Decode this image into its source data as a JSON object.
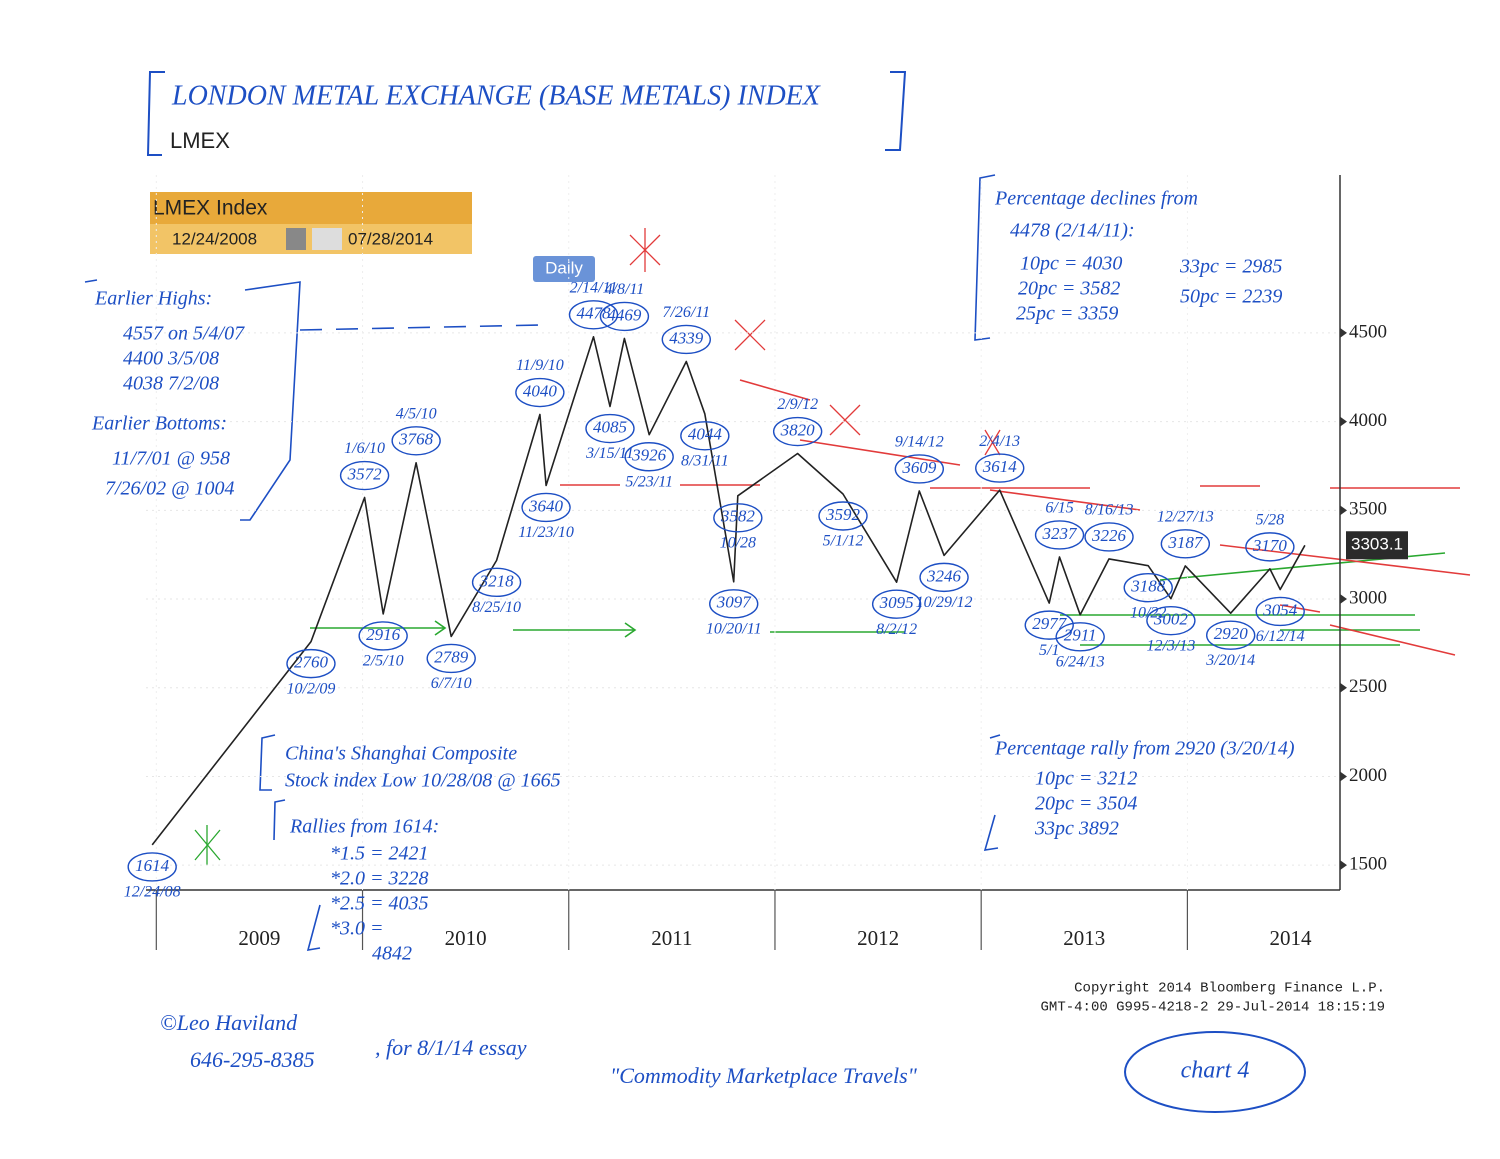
{
  "chart_data": {
    "type": "line",
    "title": "LONDON METAL EXCHANGE (BASE METALS) INDEX",
    "subtitle": "LMEX",
    "widget": {
      "start": "12/24/2008",
      "end": "07/28/2014",
      "period": "Daily"
    },
    "series": [
      {
        "name": "LMEX Index",
        "color": "#222222",
        "x": [
          2008.98,
          2009.75,
          2010.01,
          2010.1,
          2010.26,
          2010.43,
          2010.65,
          2010.86,
          2010.89,
          2011.12,
          2011.2,
          2011.27,
          2011.39,
          2011.57,
          2011.66,
          2011.8,
          2011.82,
          2012.11,
          2012.33,
          2012.59,
          2012.7,
          2012.82,
          2013.09,
          2013.33,
          2013.38,
          2013.48,
          2013.62,
          2013.81,
          2013.92,
          2013.99,
          2014.21,
          2014.4,
          2014.45,
          2014.57
        ],
        "values": [
          1614,
          2760,
          3572,
          2916,
          3768,
          2789,
          3218,
          4040,
          3640,
          4478,
          4085,
          4469,
          3926,
          4339,
          4044,
          3097,
          3582,
          3820,
          3592,
          3095,
          3609,
          3246,
          3614,
          2977,
          3237,
          2911,
          3226,
          3188,
          3002,
          3187,
          2920,
          3170,
          3054,
          3303.1
        ],
        "date_labels": [
          "12/24/08",
          "10/2/09",
          "1/6/10",
          "2/5/10",
          "4/5/10",
          "6/7/10",
          "8/25/10",
          "11/9/10",
          "11/23/10",
          "2/14/11",
          "3/15/11",
          "4/8/11",
          "5/23/11",
          "7/26/11",
          "8/31/11",
          "10/20/11",
          "10/28",
          "2/9/12",
          "5/1/12",
          "8/2/12",
          "9/14/12",
          "10/29/12",
          "2/4/13",
          "5/1",
          "6/15",
          "6/24/13",
          "8/16/13",
          "10/22",
          "12/3/13",
          "12/27/13",
          "3/20/14",
          "5/28",
          "6/12/14",
          null
        ]
      }
    ],
    "xlim": [
      2008.95,
      2014.74
    ],
    "xticks": [
      {
        "value": 2009,
        "label": "2009"
      },
      {
        "value": 2010,
        "label": "2010"
      },
      {
        "value": 2011,
        "label": "2011"
      },
      {
        "value": 2012,
        "label": "2012"
      },
      {
        "value": 2013,
        "label": "2013"
      },
      {
        "value": 2014,
        "label": "2014"
      }
    ],
    "ylim": [
      1360,
      5390
    ],
    "yticks": [
      1500,
      2000,
      2500,
      3000,
      3500,
      4000,
      4500
    ],
    "grid": true,
    "notes": [
      {
        "lines": [
          "Earlier Highs:",
          "4557 on 5/4/07",
          "4400   3/5/08",
          "4038   7/2/08",
          "Earlier Bottoms:",
          "11/7/01 @ 958",
          "7/26/02 @ 1004"
        ]
      },
      {
        "lines": [
          "Percentage declines from",
          "4478 (2/14/11):",
          "10pc = 4030",
          "20pc = 3582",
          "25pc = 3359",
          "33pc = 2985",
          "50pc = 2239"
        ]
      },
      {
        "lines": [
          "China's Shanghai Composite",
          "Stock index Low 10/28/08 @ 1665"
        ]
      },
      {
        "lines": [
          "Rallies from 1614:",
          "*1.5 = 2421",
          "*2.0 = 3228",
          "*2.5 = 4035",
          "*3.0 =",
          "4842"
        ]
      },
      {
        "lines": [
          "Percentage rally from 2920 (3/20/14)",
          "10pc = 3212",
          "20pc = 3504",
          "33pc  3892"
        ]
      },
      {
        "lines": [
          "Copyright 2014 Bloomberg Finance L.P.",
          "GMT-4:00 G995-4218-2 29-Jul-2014 18:15:19"
        ]
      },
      {
        "lines": [
          "©Leo Haviland",
          "646-295-8385",
          ", for 8/1/14 essay",
          "\"Commodity Marketplace Travels\""
        ]
      },
      {
        "lines": [
          "chart 4"
        ]
      }
    ]
  }
}
